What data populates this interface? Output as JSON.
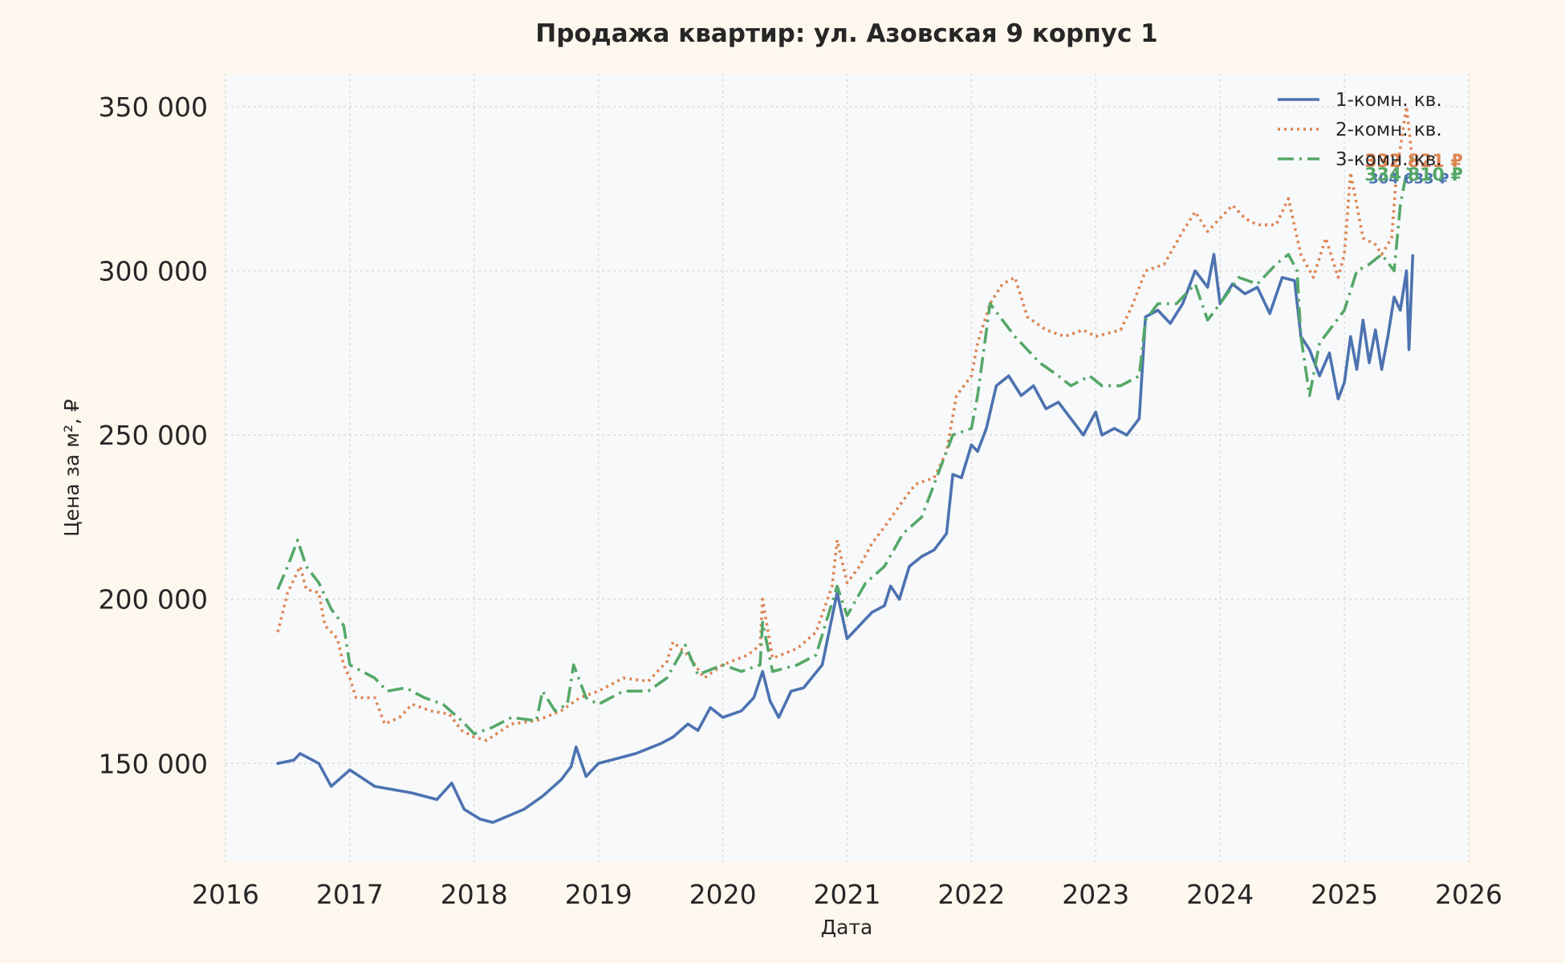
{
  "chart_data": {
    "type": "line",
    "title": "Продажа квартир: ул. Азовская 9 корпус 1",
    "xlabel": "Дата",
    "ylabel": "Цена за м², ₽",
    "xlim": [
      2016.0,
      2026.0
    ],
    "ylim": [
      120000,
      360000
    ],
    "x_ticks": [
      2016,
      2017,
      2018,
      2019,
      2020,
      2021,
      2022,
      2023,
      2024,
      2025,
      2026
    ],
    "x_tick_labels": [
      "2016",
      "2017",
      "2018",
      "2019",
      "2020",
      "2021",
      "2022",
      "2023",
      "2024",
      "2025",
      "2026"
    ],
    "y_ticks": [
      150000,
      200000,
      250000,
      300000,
      350000
    ],
    "y_tick_labels": [
      "150 000",
      "200 000",
      "250 000",
      "300 000",
      "350 000"
    ],
    "grid": true,
    "legend_position": "top-right",
    "colors": {
      "page_background": "#fdf7ee",
      "plot_background": "#f8f9fa",
      "grid": "#dcdcdc",
      "text": "#262626"
    },
    "series": [
      {
        "name": "1-комн. кв.",
        "color": "#4c72b0",
        "dash": "solid",
        "end_label": "304 633 ₽",
        "points": [
          [
            2016.42,
            150000
          ],
          [
            2016.55,
            151000
          ],
          [
            2016.6,
            153000
          ],
          [
            2016.75,
            150000
          ],
          [
            2016.85,
            143000
          ],
          [
            2017.0,
            148000
          ],
          [
            2017.2,
            143000
          ],
          [
            2017.5,
            141000
          ],
          [
            2017.7,
            139000
          ],
          [
            2017.82,
            144000
          ],
          [
            2017.92,
            136000
          ],
          [
            2018.05,
            133000
          ],
          [
            2018.15,
            132000
          ],
          [
            2018.4,
            136000
          ],
          [
            2018.55,
            140000
          ],
          [
            2018.7,
            145000
          ],
          [
            2018.78,
            149000
          ],
          [
            2018.82,
            155000
          ],
          [
            2018.9,
            146000
          ],
          [
            2019.0,
            150000
          ],
          [
            2019.3,
            153000
          ],
          [
            2019.5,
            156000
          ],
          [
            2019.6,
            158000
          ],
          [
            2019.72,
            162000
          ],
          [
            2019.8,
            160000
          ],
          [
            2019.9,
            167000
          ],
          [
            2020.0,
            164000
          ],
          [
            2020.15,
            166000
          ],
          [
            2020.25,
            170000
          ],
          [
            2020.32,
            178000
          ],
          [
            2020.38,
            169000
          ],
          [
            2020.45,
            164000
          ],
          [
            2020.55,
            172000
          ],
          [
            2020.65,
            173000
          ],
          [
            2020.8,
            180000
          ],
          [
            2020.92,
            202000
          ],
          [
            2021.0,
            188000
          ],
          [
            2021.1,
            192000
          ],
          [
            2021.2,
            196000
          ],
          [
            2021.3,
            198000
          ],
          [
            2021.35,
            204000
          ],
          [
            2021.42,
            200000
          ],
          [
            2021.5,
            210000
          ],
          [
            2021.6,
            213000
          ],
          [
            2021.7,
            215000
          ],
          [
            2021.8,
            220000
          ],
          [
            2021.85,
            238000
          ],
          [
            2021.92,
            237000
          ],
          [
            2022.0,
            247000
          ],
          [
            2022.05,
            245000
          ],
          [
            2022.12,
            252000
          ],
          [
            2022.2,
            265000
          ],
          [
            2022.3,
            268000
          ],
          [
            2022.4,
            262000
          ],
          [
            2022.5,
            265000
          ],
          [
            2022.6,
            258000
          ],
          [
            2022.7,
            260000
          ],
          [
            2022.8,
            255000
          ],
          [
            2022.9,
            250000
          ],
          [
            2023.0,
            257000
          ],
          [
            2023.05,
            250000
          ],
          [
            2023.15,
            252000
          ],
          [
            2023.25,
            250000
          ],
          [
            2023.35,
            255000
          ],
          [
            2023.4,
            286000
          ],
          [
            2023.5,
            288000
          ],
          [
            2023.6,
            284000
          ],
          [
            2023.7,
            290000
          ],
          [
            2023.8,
            300000
          ],
          [
            2023.9,
            295000
          ],
          [
            2023.95,
            305000
          ],
          [
            2024.0,
            290000
          ],
          [
            2024.1,
            296000
          ],
          [
            2024.2,
            293000
          ],
          [
            2024.3,
            295000
          ],
          [
            2024.4,
            287000
          ],
          [
            2024.5,
            298000
          ],
          [
            2024.6,
            297000
          ],
          [
            2024.65,
            280000
          ],
          [
            2024.72,
            276000
          ],
          [
            2024.8,
            268000
          ],
          [
            2024.88,
            275000
          ],
          [
            2024.95,
            261000
          ],
          [
            2025.0,
            266000
          ],
          [
            2025.05,
            280000
          ],
          [
            2025.1,
            270000
          ],
          [
            2025.15,
            285000
          ],
          [
            2025.2,
            272000
          ],
          [
            2025.25,
            282000
          ],
          [
            2025.3,
            270000
          ],
          [
            2025.35,
            280000
          ],
          [
            2025.4,
            292000
          ],
          [
            2025.45,
            288000
          ],
          [
            2025.5,
            300000
          ],
          [
            2025.52,
            276000
          ],
          [
            2025.55,
            304633
          ]
        ]
      },
      {
        "name": "2-комн. кв.",
        "color": "#dd8452",
        "dash": "dotted",
        "end_label": "332 821 ₽",
        "points": [
          [
            2016.42,
            190000
          ],
          [
            2016.5,
            202000
          ],
          [
            2016.6,
            210000
          ],
          [
            2016.65,
            203000
          ],
          [
            2016.75,
            202000
          ],
          [
            2016.8,
            192000
          ],
          [
            2016.9,
            188000
          ],
          [
            2016.95,
            180000
          ],
          [
            2017.0,
            176000
          ],
          [
            2017.05,
            170000
          ],
          [
            2017.2,
            170000
          ],
          [
            2017.28,
            162000
          ],
          [
            2017.4,
            164000
          ],
          [
            2017.5,
            168000
          ],
          [
            2017.65,
            166000
          ],
          [
            2017.8,
            165000
          ],
          [
            2017.9,
            160000
          ],
          [
            2018.0,
            158000
          ],
          [
            2018.1,
            157000
          ],
          [
            2018.3,
            162000
          ],
          [
            2018.5,
            163000
          ],
          [
            2018.7,
            166000
          ],
          [
            2018.85,
            170000
          ],
          [
            2019.0,
            172000
          ],
          [
            2019.2,
            176000
          ],
          [
            2019.4,
            175000
          ],
          [
            2019.55,
            181000
          ],
          [
            2019.6,
            187000
          ],
          [
            2019.72,
            183000
          ],
          [
            2019.85,
            176000
          ],
          [
            2020.0,
            180000
          ],
          [
            2020.2,
            183000
          ],
          [
            2020.3,
            186000
          ],
          [
            2020.32,
            200000
          ],
          [
            2020.4,
            182000
          ],
          [
            2020.6,
            185000
          ],
          [
            2020.75,
            190000
          ],
          [
            2020.88,
            204000
          ],
          [
            2020.92,
            218000
          ],
          [
            2021.0,
            205000
          ],
          [
            2021.1,
            210000
          ],
          [
            2021.2,
            217000
          ],
          [
            2021.3,
            222000
          ],
          [
            2021.45,
            230000
          ],
          [
            2021.55,
            235000
          ],
          [
            2021.7,
            237000
          ],
          [
            2021.8,
            245000
          ],
          [
            2021.88,
            262000
          ],
          [
            2022.0,
            268000
          ],
          [
            2022.05,
            278000
          ],
          [
            2022.15,
            290000
          ],
          [
            2022.25,
            296000
          ],
          [
            2022.35,
            298000
          ],
          [
            2022.45,
            286000
          ],
          [
            2022.6,
            282000
          ],
          [
            2022.75,
            280000
          ],
          [
            2022.9,
            282000
          ],
          [
            2023.0,
            280000
          ],
          [
            2023.2,
            282000
          ],
          [
            2023.3,
            290000
          ],
          [
            2023.4,
            300000
          ],
          [
            2023.55,
            302000
          ],
          [
            2023.7,
            312000
          ],
          [
            2023.8,
            318000
          ],
          [
            2023.9,
            312000
          ],
          [
            2024.0,
            316000
          ],
          [
            2024.1,
            320000
          ],
          [
            2024.2,
            316000
          ],
          [
            2024.3,
            314000
          ],
          [
            2024.45,
            314000
          ],
          [
            2024.55,
            322000
          ],
          [
            2024.65,
            305000
          ],
          [
            2024.75,
            298000
          ],
          [
            2024.85,
            310000
          ],
          [
            2024.95,
            298000
          ],
          [
            2025.0,
            305000
          ],
          [
            2025.05,
            330000
          ],
          [
            2025.15,
            310000
          ],
          [
            2025.25,
            308000
          ],
          [
            2025.3,
            305000
          ],
          [
            2025.38,
            310000
          ],
          [
            2025.42,
            330000
          ],
          [
            2025.5,
            350000
          ],
          [
            2025.55,
            332821
          ]
        ]
      },
      {
        "name": "3-комн. кв.",
        "color": "#55a868",
        "dash": "dashdot",
        "end_label": "334 810 ₽",
        "points": [
          [
            2016.42,
            203000
          ],
          [
            2016.5,
            210000
          ],
          [
            2016.58,
            218000
          ],
          [
            2016.65,
            210000
          ],
          [
            2016.75,
            205000
          ],
          [
            2016.85,
            197000
          ],
          [
            2016.95,
            192000
          ],
          [
            2017.0,
            180000
          ],
          [
            2017.1,
            178000
          ],
          [
            2017.2,
            176000
          ],
          [
            2017.3,
            172000
          ],
          [
            2017.45,
            173000
          ],
          [
            2017.6,
            170000
          ],
          [
            2017.75,
            168000
          ],
          [
            2017.9,
            163000
          ],
          [
            2018.0,
            159000
          ],
          [
            2018.15,
            161000
          ],
          [
            2018.3,
            164000
          ],
          [
            2018.5,
            163000
          ],
          [
            2018.55,
            172000
          ],
          [
            2018.65,
            166000
          ],
          [
            2018.75,
            168000
          ],
          [
            2018.8,
            180000
          ],
          [
            2018.9,
            170000
          ],
          [
            2019.0,
            168000
          ],
          [
            2019.2,
            172000
          ],
          [
            2019.4,
            172000
          ],
          [
            2019.55,
            176000
          ],
          [
            2019.7,
            186000
          ],
          [
            2019.8,
            177000
          ],
          [
            2020.0,
            180000
          ],
          [
            2020.15,
            178000
          ],
          [
            2020.3,
            180000
          ],
          [
            2020.32,
            193000
          ],
          [
            2020.4,
            178000
          ],
          [
            2020.6,
            180000
          ],
          [
            2020.75,
            183000
          ],
          [
            2020.92,
            204000
          ],
          [
            2021.0,
            195000
          ],
          [
            2021.15,
            205000
          ],
          [
            2021.3,
            210000
          ],
          [
            2021.45,
            220000
          ],
          [
            2021.6,
            225000
          ],
          [
            2021.75,
            240000
          ],
          [
            2021.85,
            250000
          ],
          [
            2022.0,
            252000
          ],
          [
            2022.05,
            262000
          ],
          [
            2022.15,
            290000
          ],
          [
            2022.25,
            285000
          ],
          [
            2022.35,
            280000
          ],
          [
            2022.45,
            276000
          ],
          [
            2022.55,
            272000
          ],
          [
            2022.7,
            268000
          ],
          [
            2022.8,
            265000
          ],
          [
            2022.95,
            268000
          ],
          [
            2023.05,
            265000
          ],
          [
            2023.2,
            265000
          ],
          [
            2023.35,
            268000
          ],
          [
            2023.4,
            285000
          ],
          [
            2023.5,
            290000
          ],
          [
            2023.65,
            290000
          ],
          [
            2023.8,
            296000
          ],
          [
            2023.9,
            285000
          ],
          [
            2024.0,
            290000
          ],
          [
            2024.15,
            298000
          ],
          [
            2024.3,
            296000
          ],
          [
            2024.45,
            302000
          ],
          [
            2024.55,
            305000
          ],
          [
            2024.62,
            300000
          ],
          [
            2024.65,
            280000
          ],
          [
            2024.72,
            262000
          ],
          [
            2024.8,
            278000
          ],
          [
            2024.9,
            283000
          ],
          [
            2025.0,
            288000
          ],
          [
            2025.1,
            300000
          ],
          [
            2025.2,
            302000
          ],
          [
            2025.3,
            305000
          ],
          [
            2025.4,
            300000
          ],
          [
            2025.45,
            320000
          ],
          [
            2025.5,
            330000
          ],
          [
            2025.55,
            334810
          ]
        ]
      }
    ]
  }
}
